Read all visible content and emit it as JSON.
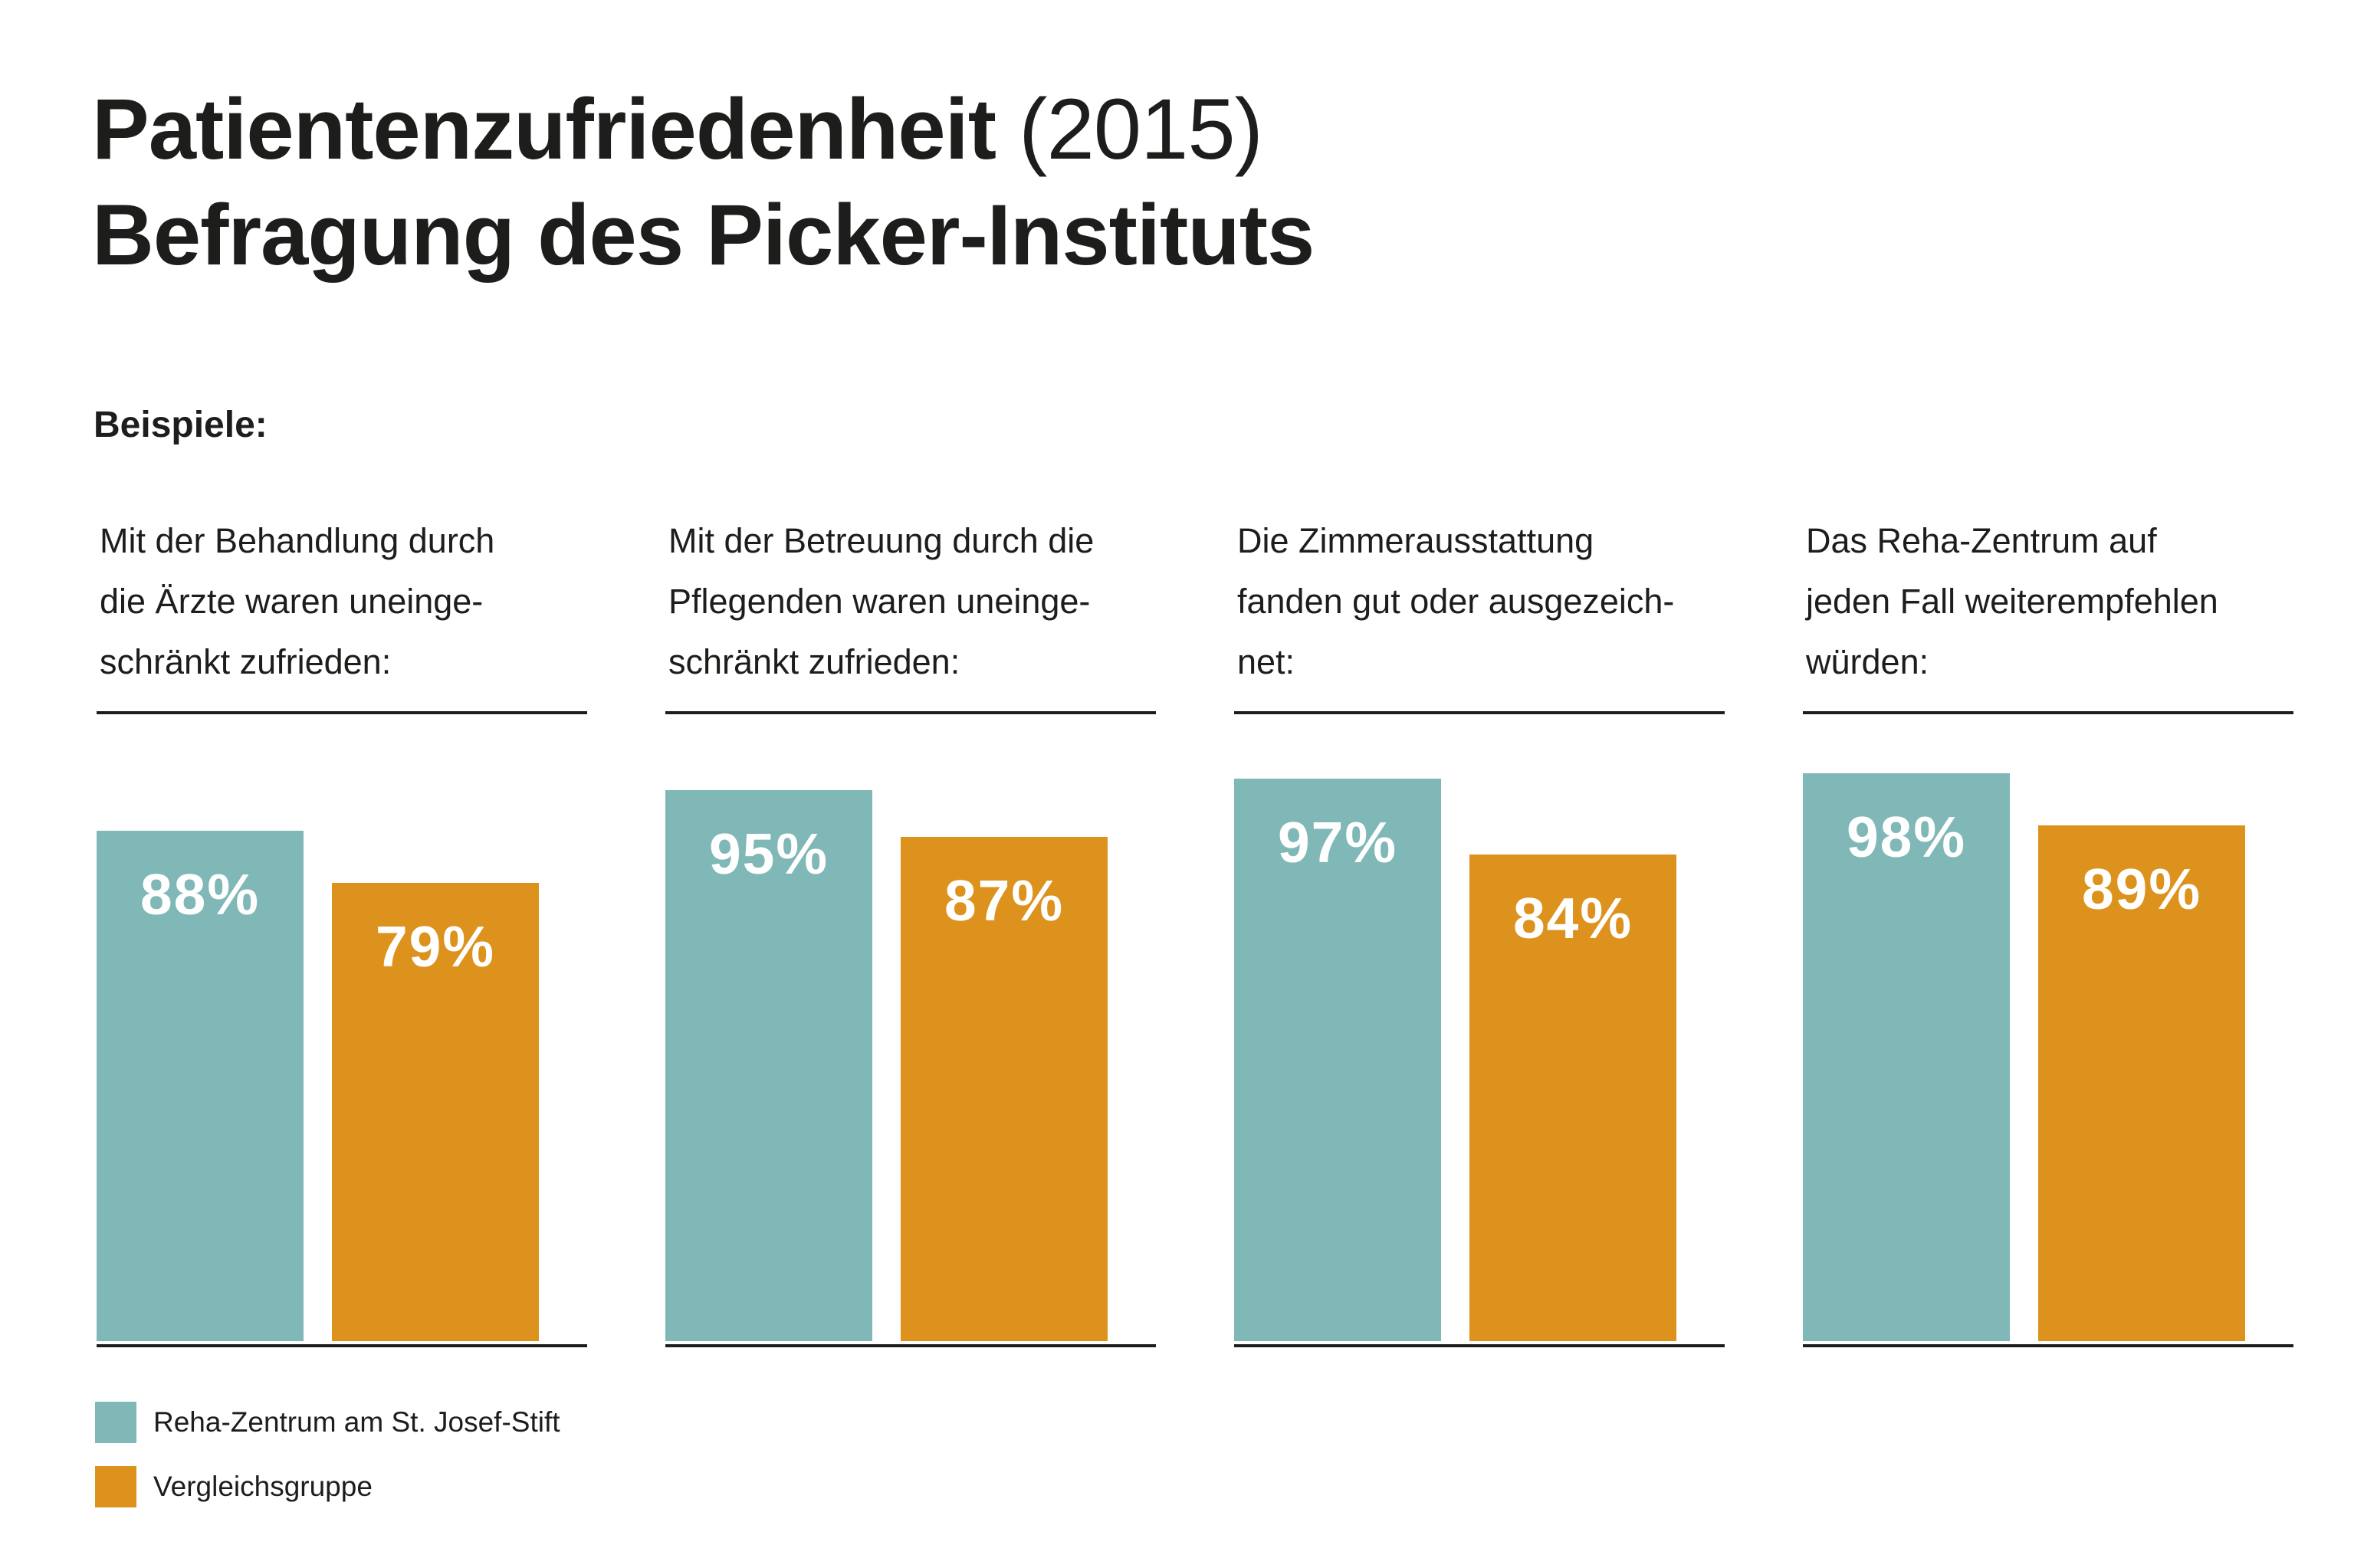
{
  "title": {
    "bold": "Patientenzufriedenheit",
    "light": "(2015)",
    "line2": "Befragung des Picker-Instituts"
  },
  "section_label": "Beispiele:",
  "groups": [
    {
      "question": "Mit der Behandlung durch\ndie Ärzte waren uneinge-\nschränkt zufrieden:",
      "a_label": "88%",
      "b_label": "79%"
    },
    {
      "question": "Mit der Betreuung durch die\nPflegenden waren uneinge-\nschränkt zufrieden:",
      "a_label": "95%",
      "b_label": "87%"
    },
    {
      "question": "Die Zimmerausstattung\nfanden gut oder ausgezeich-\nnet:",
      "a_label": "97%",
      "b_label": "84%"
    },
    {
      "question": "Das Reha-Zentrum auf\njeden Fall weiterempfehlen\nwürden:",
      "a_label": "98%",
      "b_label": "89%"
    }
  ],
  "legend": [
    {
      "label": "Reha-Zentrum am St. Josef-Stift",
      "color": "#7fb8b6"
    },
    {
      "label": "Vergleichsgruppe",
      "color": "#dc921c"
    }
  ],
  "chart_data": {
    "type": "bar",
    "title": "Patientenzufriedenheit (2015) Befragung des Picker-Instituts",
    "categories": [
      "Mit der Behandlung durch die Ärzte waren uneingeschränkt zufrieden:",
      "Mit der Betreuung durch die Pflegenden waren uneingeschränkt zufrieden:",
      "Die Zimmerausstattung fanden gut oder ausgezeichnet:",
      "Das Reha-Zentrum auf jeden Fall weiterempfehlen würden:"
    ],
    "series": [
      {
        "name": "Reha-Zentrum am St. Josef-Stift",
        "values": [
          88,
          95,
          97,
          98
        ],
        "color": "#7fb8b6"
      },
      {
        "name": "Vergleichsgruppe",
        "values": [
          79,
          87,
          84,
          89
        ],
        "color": "#dc921c"
      }
    ],
    "unit": "%",
    "ylim": [
      0,
      100
    ],
    "grid": false,
    "legend_position": "bottom-left"
  }
}
